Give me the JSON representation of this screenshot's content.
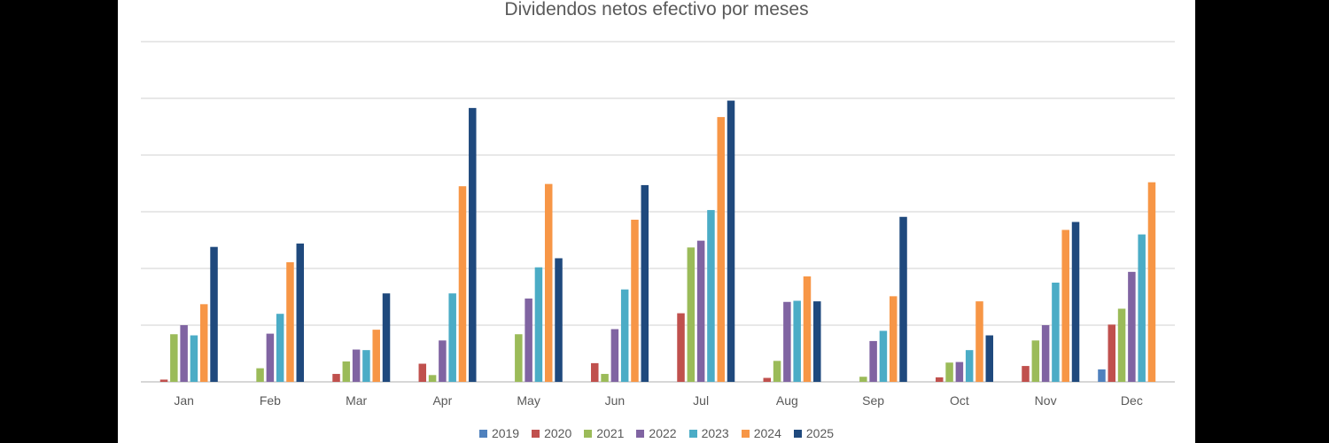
{
  "chart_data": {
    "type": "bar",
    "title": "Dividendos netos efectivo por meses",
    "xlabel": "",
    "ylabel": "",
    "categories": [
      "Jan",
      "Feb",
      "Mar",
      "Apr",
      "May",
      "Jun",
      "Jul",
      "Aug",
      "Sep",
      "Oct",
      "Nov",
      "Dec"
    ],
    "ylim": [
      0,
      6
    ],
    "grid": true,
    "legend_position": "bottom",
    "series": [
      {
        "name": "2019",
        "color": "#4F81BD",
        "values": [
          0,
          0,
          0,
          0,
          0,
          0,
          0,
          0,
          0,
          0,
          0,
          0.22
        ]
      },
      {
        "name": "2020",
        "color": "#C0504D",
        "values": [
          0.04,
          0,
          0.14,
          0.32,
          0,
          0.33,
          1.21,
          0.07,
          0,
          0.08,
          0.28,
          1.01
        ]
      },
      {
        "name": "2021",
        "color": "#9BBB59",
        "values": [
          0.84,
          0.24,
          0.36,
          0.12,
          0.84,
          0.14,
          2.37,
          0.37,
          0.09,
          0.34,
          0.73,
          1.29
        ]
      },
      {
        "name": "2022",
        "color": "#8064A2",
        "values": [
          1.0,
          0.85,
          0.57,
          0.73,
          1.47,
          0.93,
          2.49,
          1.41,
          0.72,
          0.35,
          1.0,
          1.94
        ]
      },
      {
        "name": "2023",
        "color": "#4BACC6",
        "values": [
          0.82,
          1.2,
          0.56,
          1.56,
          2.02,
          1.63,
          3.03,
          1.43,
          0.9,
          0.56,
          1.75,
          2.6
        ]
      },
      {
        "name": "2024",
        "color": "#F79646",
        "values": [
          1.37,
          2.11,
          0.92,
          3.45,
          3.49,
          2.86,
          4.67,
          1.86,
          1.51,
          1.42,
          2.68,
          3.52
        ]
      },
      {
        "name": "2025",
        "color": "#1F497D",
        "values": [
          2.38,
          2.44,
          1.56,
          4.83,
          2.18,
          3.47,
          4.96,
          1.42,
          2.91,
          0.82,
          2.82,
          0
        ]
      }
    ]
  }
}
